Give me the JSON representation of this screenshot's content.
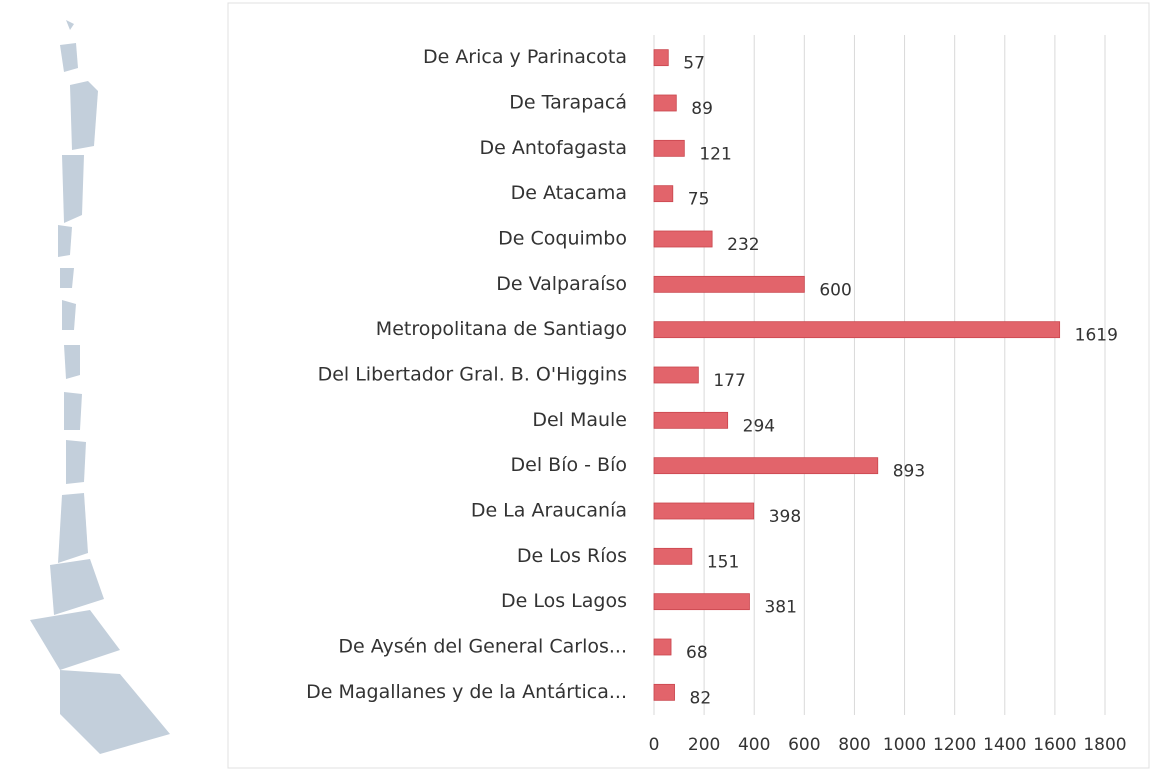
{
  "chart_data": {
    "type": "bar",
    "orientation": "horizontal",
    "categories": [
      "De Arica y Parinacota",
      "De Tarapacá",
      "De Antofagasta",
      "De Atacama",
      "De Coquimbo",
      "De Valparaíso",
      "Metropolitana de Santiago",
      "Del Libertador Gral. B. O'Higgins",
      "Del Maule",
      "Del Bío - Bío",
      "De La Araucanía",
      "De Los Ríos",
      "De Los Lagos",
      "De Aysén del General Carlos...",
      "De Magallanes y de la Antártica..."
    ],
    "values": [
      57,
      89,
      121,
      75,
      232,
      600,
      1619,
      177,
      294,
      893,
      398,
      151,
      381,
      68,
      82
    ],
    "color": "#e2646b",
    "xlim": [
      0,
      1800
    ],
    "xticks": [
      0,
      200,
      400,
      600,
      800,
      1000,
      1200,
      1400,
      1600,
      1800
    ],
    "grid": true
  }
}
